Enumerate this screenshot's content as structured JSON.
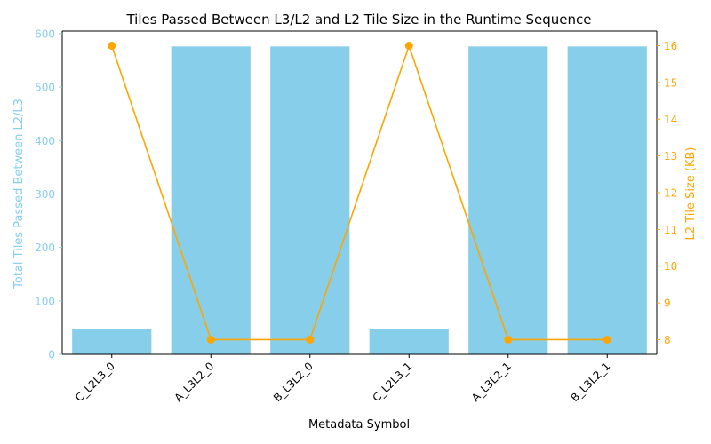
{
  "chart_data": {
    "type": "bar",
    "title": "Tiles Passed Between L3/L2 and L2 Tile Size in the Runtime Sequence",
    "xlabel": "Metadata Symbol",
    "ylabel_left": "Total Tiles Passed Between L2/L3",
    "ylabel_right": "L2 Tile Size (KB)",
    "categories": [
      "C_L2L3_0",
      "A_L3L2_0",
      "B_L3L2_0",
      "C_L2L3_1",
      "A_L3L2_1",
      "B_L3L2_1"
    ],
    "series": [
      {
        "kind": "bar",
        "axis": "left",
        "color": "#87ceeb",
        "values": [
          48,
          576,
          576,
          48,
          576,
          576
        ]
      },
      {
        "kind": "line",
        "axis": "right",
        "color": "#ffa500",
        "marker": "circle",
        "values": [
          16,
          8,
          8,
          16,
          8,
          8
        ]
      }
    ],
    "ylim_left": [
      0,
      604.8
    ],
    "yticks_left": [
      0,
      100,
      200,
      300,
      400,
      500,
      600
    ],
    "ylim_right": [
      7.6,
      16.4
    ],
    "yticks_right": [
      8,
      9,
      10,
      11,
      12,
      13,
      14,
      15,
      16
    ],
    "left_axis_color": "#87ceeb",
    "right_axis_color": "#ffa500",
    "grid": false,
    "legend": "none"
  }
}
